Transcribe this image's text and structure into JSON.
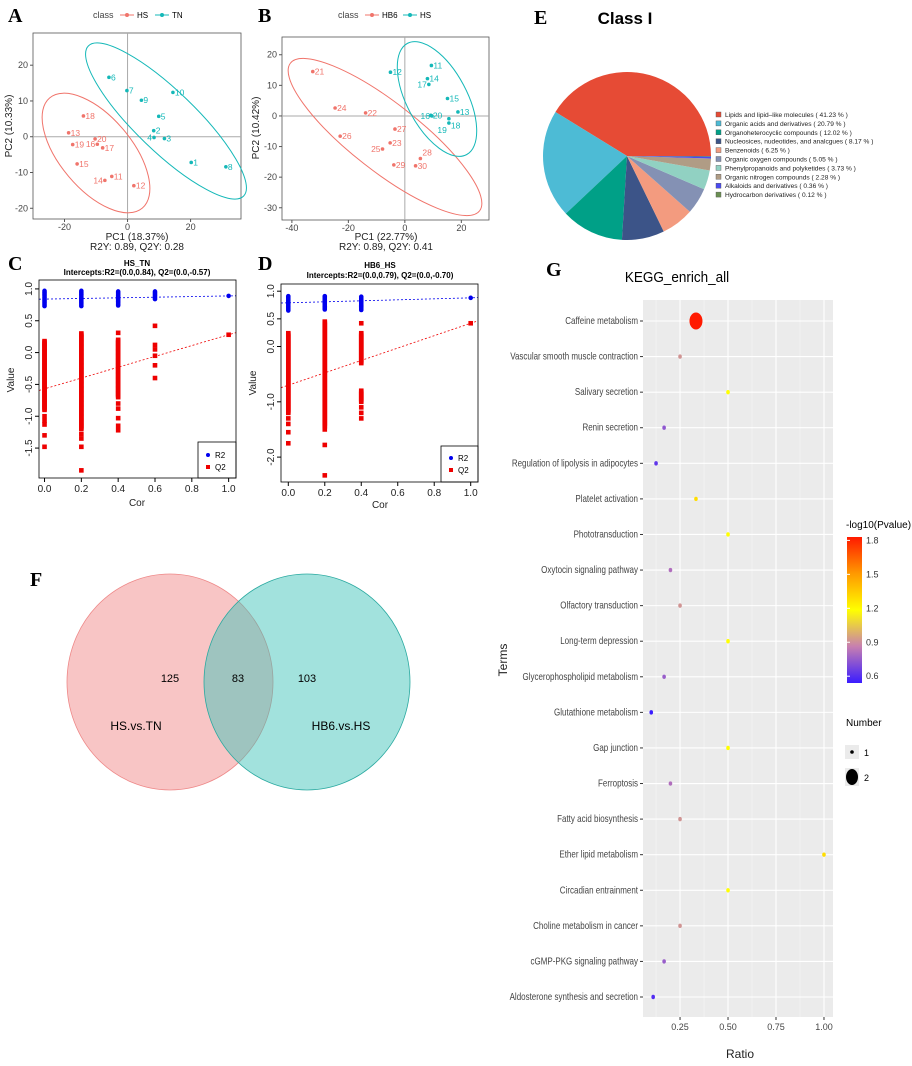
{
  "panels": {
    "A": "A",
    "B": "B",
    "C": "C",
    "D": "D",
    "E": "E",
    "F": "F",
    "G": "G"
  },
  "chart_data": [
    {
      "panel": "A",
      "type": "scatter",
      "legend_title": "class",
      "xlabel": "PC1 (18.37%)",
      "ylabel": "PC2 (10.33%)",
      "subtitle": "R2Y: 0.89, Q2Y: 0.28",
      "xlim": [
        -30,
        36
      ],
      "ylim": [
        -23,
        29
      ],
      "xticks": [
        -20,
        0,
        20
      ],
      "yticks": [
        -20,
        -10,
        0,
        10,
        20
      ],
      "reference_lines": {
        "x": 0,
        "y": 0
      },
      "series": [
        {
          "name": "HS",
          "color": "#f0746b",
          "points": [
            {
              "label": "18",
              "x": -14,
              "y": 5.8
            },
            {
              "label": "13",
              "x": -18.7,
              "y": 1.1
            },
            {
              "label": "19",
              "x": -17.4,
              "y": -2.2
            },
            {
              "label": "20",
              "x": -10.3,
              "y": -0.6
            },
            {
              "label": "16",
              "x": -9.6,
              "y": -2.1
            },
            {
              "label": "17",
              "x": -7.9,
              "y": -3.1
            },
            {
              "label": "15",
              "x": -16,
              "y": -7.6
            },
            {
              "label": "11",
              "x": -5,
              "y": -11.1
            },
            {
              "label": "14",
              "x": -7.2,
              "y": -12.2
            },
            {
              "label": "12",
              "x": 2,
              "y": -13.7
            }
          ]
        },
        {
          "name": "TN",
          "color": "#14b8b8",
          "points": [
            {
              "label": "6",
              "x": -5.9,
              "y": 16.6
            },
            {
              "label": "7",
              "x": -0.2,
              "y": 12.9
            },
            {
              "label": "10",
              "x": 14.4,
              "y": 12.4
            },
            {
              "label": "9",
              "x": 4.4,
              "y": 10.2
            },
            {
              "label": "5",
              "x": 9.9,
              "y": 5.7
            },
            {
              "label": "2",
              "x": 8.3,
              "y": 1.7
            },
            {
              "label": "4",
              "x": 8.4,
              "y": -0.2
            },
            {
              "label": "3",
              "x": 11.7,
              "y": -0.5
            },
            {
              "label": "1",
              "x": 20.2,
              "y": -7.2
            },
            {
              "label": "8",
              "x": 31.2,
              "y": -8.4
            }
          ]
        }
      ]
    },
    {
      "panel": "B",
      "type": "scatter",
      "legend_title": "class",
      "xlabel": "PC1 (22.77%)",
      "ylabel": "PC2 (10.42%)",
      "subtitle": "R2Y: 0.89, Q2Y: 0.41",
      "xlim": [
        -43.5,
        29.8
      ],
      "ylim": [
        -34,
        25.8
      ],
      "xticks": [
        -40,
        -20,
        0,
        20
      ],
      "yticks": [
        -30,
        -20,
        -10,
        0,
        10,
        20
      ],
      "reference_lines": {
        "x": 0,
        "y": 0
      },
      "series": [
        {
          "name": "HB6",
          "color": "#f0746b",
          "points": [
            {
              "label": "21",
              "x": -32.6,
              "y": 14.5
            },
            {
              "label": "24",
              "x": -24.7,
              "y": 2.6
            },
            {
              "label": "22",
              "x": -13.9,
              "y": 1
            },
            {
              "label": "26",
              "x": -22.9,
              "y": -6.6
            },
            {
              "label": "27",
              "x": -3.5,
              "y": -4.3
            },
            {
              "label": "23",
              "x": -5.2,
              "y": -8.8
            },
            {
              "label": "25",
              "x": -7.9,
              "y": -10.8
            },
            {
              "label": "29",
              "x": -3.9,
              "y": -16
            },
            {
              "label": "30",
              "x": 3.8,
              "y": -16.3
            },
            {
              "label": "28",
              "x": 5.5,
              "y": -13.9
            }
          ]
        },
        {
          "name": "HS",
          "color": "#14b8b8",
          "points": [
            {
              "label": "12",
              "x": -5.1,
              "y": 14.3
            },
            {
              "label": "11",
              "x": 9.4,
              "y": 16.5
            },
            {
              "label": "14",
              "x": 8,
              "y": 12.2
            },
            {
              "label": "17",
              "x": 8.5,
              "y": 10.3
            },
            {
              "label": "15",
              "x": 15.1,
              "y": 5.7
            },
            {
              "label": "20",
              "x": 9.2,
              "y": 0.2
            },
            {
              "label": "16",
              "x": 9.6,
              "y": 0
            },
            {
              "label": "13",
              "x": 18.8,
              "y": 1.3
            },
            {
              "label": "18",
              "x": 15.6,
              "y": -0.9
            },
            {
              "label": "19",
              "x": 15.6,
              "y": -2.3
            }
          ]
        }
      ]
    },
    {
      "panel": "C",
      "type": "scatter",
      "title": "HS_TN",
      "subtitle": "Intercepts:R2=(0.0,0.84), Q2=(0.0,-0.57)",
      "xlabel": "Cor",
      "ylabel": "Value",
      "xlim": [
        -0.03,
        1.04
      ],
      "ylim": [
        -1.97,
        1.14
      ],
      "xticks": [
        "0.0",
        "0.2",
        "0.4",
        "0.6",
        "0.8",
        "1.0"
      ],
      "yticks": [
        "-1.5",
        "-1.0",
        "-0.5",
        "0.0",
        "0.5",
        "1.0"
      ],
      "series": [
        {
          "name": "R2",
          "color": "#0000ee",
          "marker": "circle",
          "columns": [
            {
              "x": 0,
              "range": [
                0.73,
                0.97
              ]
            },
            {
              "x": 0.2,
              "range": [
                0.73,
                0.97
              ]
            },
            {
              "x": 0.4,
              "range": [
                0.74,
                0.96
              ]
            },
            {
              "x": 0.6,
              "range": [
                0.84,
                0.97
              ]
            }
          ],
          "points": [
            {
              "x": 1.0,
              "y": 0.89
            }
          ]
        },
        {
          "name": "Q2",
          "color": "#ee0000",
          "marker": "square",
          "columns": [
            {
              "x": 0,
              "range": [
                -0.9,
                0.18
              ]
            },
            {
              "x": 0.2,
              "range": [
                -1.2,
                0.31
              ]
            },
            {
              "x": 0.4,
              "range": [
                -0.7,
                0.2
              ]
            }
          ],
          "points": [
            {
              "x": 0,
              "y": -1.0
            },
            {
              "x": 0,
              "y": -1.07
            },
            {
              "x": 0,
              "y": -1.13
            },
            {
              "x": 0,
              "y": -1.3
            },
            {
              "x": 0,
              "y": -1.48
            },
            {
              "x": 0.2,
              "y": -1.28
            },
            {
              "x": 0.2,
              "y": -1.35
            },
            {
              "x": 0.2,
              "y": -1.48
            },
            {
              "x": 0.2,
              "y": -1.85
            },
            {
              "x": 0.4,
              "y": 0.31
            },
            {
              "x": 0.4,
              "y": -0.8
            },
            {
              "x": 0.4,
              "y": -0.88
            },
            {
              "x": 0.4,
              "y": -1.03
            },
            {
              "x": 0.4,
              "y": -1.15
            },
            {
              "x": 0.4,
              "y": -1.22
            },
            {
              "x": 0.6,
              "y": 0.42
            },
            {
              "x": 0.6,
              "y": 0.12
            },
            {
              "x": 0.6,
              "y": 0.05
            },
            {
              "x": 0.6,
              "y": -0.05
            },
            {
              "x": 0.6,
              "y": -0.2
            },
            {
              "x": 0.6,
              "y": -0.4
            },
            {
              "x": 1.0,
              "y": 0.28
            }
          ]
        }
      ],
      "lines": [
        {
          "series": "R2",
          "from": [
            0,
            0.84
          ],
          "to": [
            1,
            0.89
          ]
        },
        {
          "series": "Q2",
          "from": [
            0,
            -0.57
          ],
          "to": [
            1,
            0.28
          ]
        }
      ]
    },
    {
      "panel": "D",
      "type": "scatter",
      "title": "HB6_HS",
      "subtitle": "Intercepts:R2=(0.0,0.79), Q2=(0.0,-0.70)",
      "xlabel": "Cor",
      "ylabel": "Value",
      "xlim": [
        -0.04,
        1.04
      ],
      "ylim": [
        -2.45,
        1.13
      ],
      "xticks": [
        "0.0",
        "0.2",
        "0.4",
        "0.6",
        "0.8",
        "1.0"
      ],
      "yticks": [
        "-2.0",
        "-1.0",
        "0.0",
        "0.5",
        "1.0"
      ],
      "series": [
        {
          "name": "R2",
          "color": "#0000ee",
          "marker": "circle",
          "columns": [
            {
              "x": 0,
              "range": [
                0.65,
                0.92
              ]
            },
            {
              "x": 0.2,
              "range": [
                0.67,
                0.92
              ]
            },
            {
              "x": 0.4,
              "range": [
                0.66,
                0.91
              ]
            }
          ],
          "points": [
            {
              "x": 1.0,
              "y": 0.88
            }
          ]
        },
        {
          "name": "Q2",
          "color": "#ee0000",
          "marker": "square",
          "columns": [
            {
              "x": 0,
              "range": [
                -1.2,
                0.25
              ]
            },
            {
              "x": 0.2,
              "range": [
                -1.45,
                0.45
              ]
            },
            {
              "x": 0.4,
              "range": [
                -0.3,
                0.25
              ]
            },
            {
              "x": 0.4,
              "range": [
                -1.0,
                -0.8
              ]
            }
          ],
          "points": [
            {
              "x": 0,
              "y": -1.3
            },
            {
              "x": 0,
              "y": -1.4
            },
            {
              "x": 0,
              "y": -1.55
            },
            {
              "x": 0,
              "y": -1.75
            },
            {
              "x": 0.2,
              "y": -1.5
            },
            {
              "x": 0.2,
              "y": -1.78
            },
            {
              "x": 0.2,
              "y": -2.33
            },
            {
              "x": 0.4,
              "y": 0.42
            },
            {
              "x": 0.4,
              "y": -1.1
            },
            {
              "x": 0.4,
              "y": -1.2
            },
            {
              "x": 0.4,
              "y": -1.3
            },
            {
              "x": 1.0,
              "y": 0.42
            }
          ]
        }
      ],
      "lines": [
        {
          "series": "R2",
          "from": [
            0,
            0.79
          ],
          "to": [
            1,
            0.88
          ]
        },
        {
          "series": "Q2",
          "from": [
            0,
            -0.7
          ],
          "to": [
            1,
            0.42
          ]
        }
      ]
    },
    {
      "panel": "E",
      "type": "pie",
      "title": "Class I",
      "slices": [
        {
          "label": "Lipids and lipid–like molecules ( 41.23 % )",
          "value": 41.23,
          "color": "#e64b35"
        },
        {
          "label": "Organic acids and derivatives ( 20.79 % )",
          "value": 20.79,
          "color": "#4dbbd5"
        },
        {
          "label": "Organoheterocyclic compounds ( 12.02 % )",
          "value": 12.02,
          "color": "#00a087"
        },
        {
          "label": "Nucleosices, nudeotides, and analcgues ( 8.17 % )",
          "value": 8.17,
          "color": "#3c5488"
        },
        {
          "label": "Benzenoids ( 6.25 % )",
          "value": 6.25,
          "color": "#f39b7f"
        },
        {
          "label": "Organic oxygen compounds ( 5.05 % )",
          "value": 5.05,
          "color": "#8491b4"
        },
        {
          "label": "Phenylpropanoids and polyketides ( 3.73 % )",
          "value": 3.73,
          "color": "#91d1c2"
        },
        {
          "label": "Organic nitrogen compounds ( 2.28 % )",
          "value": 2.28,
          "color": "#b09c85"
        },
        {
          "label": "Alkaloids and derivatives ( 0.36 % )",
          "value": 0.36,
          "color": "#4a4af0"
        },
        {
          "label": "Hydrocarbon derivatives ( 0.12 % )",
          "value": 0.12,
          "color": "#6a8f52"
        }
      ]
    },
    {
      "panel": "F",
      "type": "venn",
      "sets": [
        {
          "name": "HS.vs.TN",
          "only": "125",
          "color": "#f4a6a6"
        },
        {
          "name": "HB6.vs.HS",
          "only": "103",
          "color": "#66cfc6"
        }
      ],
      "overlap": "83"
    },
    {
      "panel": "G",
      "type": "scatter",
      "title": "KEGG_enrich_all",
      "xlabel": "Ratio",
      "ylabel": "Terms",
      "xlim": [
        0.057,
        1.047
      ],
      "xticks": [
        "0.25",
        "0.50",
        "0.75",
        "1.00"
      ],
      "color_legend": {
        "title": "-log10(Pvalue)",
        "ticks": [
          "1.8",
          "1.5",
          "1.2",
          "0.9",
          "0.6"
        ],
        "range": [
          0.6,
          1.8
        ],
        "stops": [
          {
            "v": 0.6,
            "c": "#3a1cff"
          },
          {
            "v": 0.9,
            "c": "#c77fb0"
          },
          {
            "v": 1.2,
            "c": "#ffff00"
          },
          {
            "v": 1.5,
            "c": "#ff9900"
          },
          {
            "v": 1.8,
            "c": "#ff1a00"
          }
        ]
      },
      "size_legend": {
        "title": "Number",
        "values": [
          "1",
          "2"
        ]
      },
      "terms": [
        {
          "term": "Caffeine metabolism",
          "ratio": 0.333,
          "pvalue_log": 1.8,
          "number": 2
        },
        {
          "term": "Vascular smooth muscle contraction",
          "ratio": 0.25,
          "pvalue_log": 0.95,
          "number": 1
        },
        {
          "term": "Salivary secretion",
          "ratio": 0.5,
          "pvalue_log": 1.2,
          "number": 1
        },
        {
          "term": "Renin secretion",
          "ratio": 0.167,
          "pvalue_log": 0.78,
          "number": 1
        },
        {
          "term": "Regulation of lipolysis in adipocytes",
          "ratio": 0.125,
          "pvalue_log": 0.68,
          "number": 1
        },
        {
          "term": "Platelet activation",
          "ratio": 0.333,
          "pvalue_log": 1.3,
          "number": 1
        },
        {
          "term": "Phototransduction",
          "ratio": 0.5,
          "pvalue_log": 1.2,
          "number": 1
        },
        {
          "term": "Oxytocin signaling pathway",
          "ratio": 0.2,
          "pvalue_log": 0.85,
          "number": 1
        },
        {
          "term": "Olfactory transduction",
          "ratio": 0.25,
          "pvalue_log": 0.95,
          "number": 1
        },
        {
          "term": "Long-term depression",
          "ratio": 0.5,
          "pvalue_log": 1.2,
          "number": 1
        },
        {
          "term": "Glycerophospholipid metabolism",
          "ratio": 0.167,
          "pvalue_log": 0.8,
          "number": 1
        },
        {
          "term": "Glutathione metabolism",
          "ratio": 0.1,
          "pvalue_log": 0.6,
          "number": 1
        },
        {
          "term": "Gap junction",
          "ratio": 0.5,
          "pvalue_log": 1.2,
          "number": 1
        },
        {
          "term": "Ferroptosis",
          "ratio": 0.2,
          "pvalue_log": 0.85,
          "number": 1
        },
        {
          "term": "Fatty acid biosynthesis",
          "ratio": 0.25,
          "pvalue_log": 0.95,
          "number": 1
        },
        {
          "term": "Ether lipid metabolism",
          "ratio": 1.0,
          "pvalue_log": 1.3,
          "number": 1
        },
        {
          "term": "Circadian entrainment",
          "ratio": 0.5,
          "pvalue_log": 1.2,
          "number": 1
        },
        {
          "term": "Choline metabolism in cancer",
          "ratio": 0.25,
          "pvalue_log": 0.95,
          "number": 1
        },
        {
          "term": "cGMP-PKG signaling pathway",
          "ratio": 0.167,
          "pvalue_log": 0.8,
          "number": 1
        },
        {
          "term": "Aldosterone synthesis and secretion",
          "ratio": 0.11,
          "pvalue_log": 0.65,
          "number": 1
        }
      ]
    }
  ]
}
